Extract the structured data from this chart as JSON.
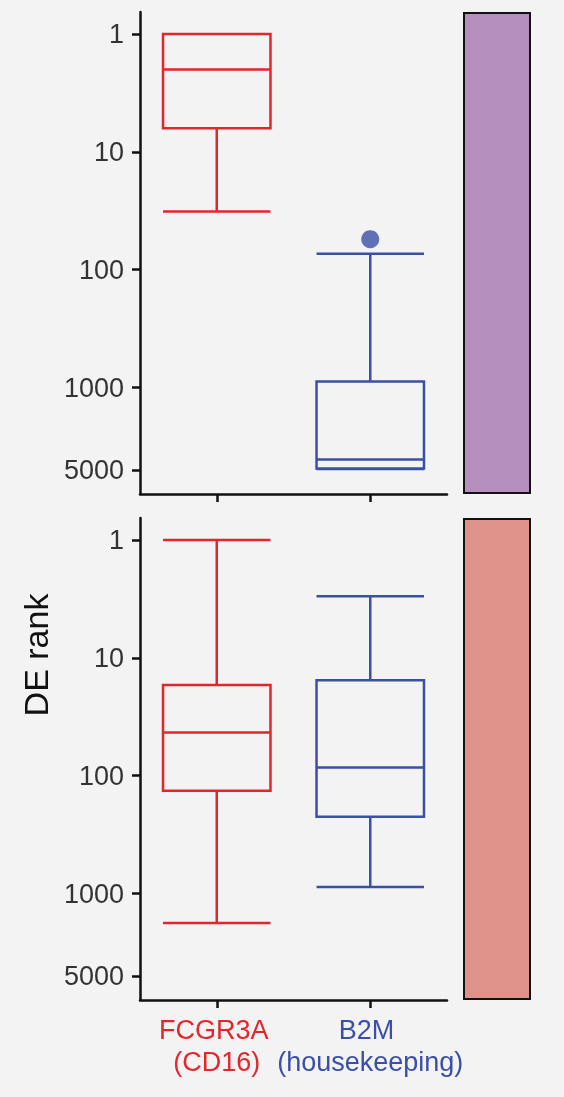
{
  "chart_data": [
    {
      "type": "box",
      "categories": [
        "FCGR3A (CD16)",
        "B2M (housekeeping)"
      ],
      "colors": [
        "#e3262b",
        "#3a4fa8"
      ],
      "log": true,
      "ylim": [
        8000,
        0.65
      ],
      "yticks": [
        1,
        10,
        100,
        1000,
        5000
      ],
      "tick_labels": "y",
      "grid": false,
      "boxes": [
        {
          "low": 1,
          "q1": 1,
          "median": 2,
          "q3": 6.3,
          "high": 32
        },
        {
          "low": 73,
          "q1": 890,
          "median": 4070,
          "q3": 4860,
          "high": 4900,
          "outliers": [
            55
          ]
        }
      ]
    },
    {
      "type": "box",
      "categories": [
        "FCGR3A (CD16)",
        "B2M (housekeeping)"
      ],
      "colors": [
        "#e3262b",
        "#3a4fa8"
      ],
      "log": true,
      "ylim": [
        8000,
        0.65
      ],
      "yticks": [
        1,
        10,
        100,
        1000,
        5000
      ],
      "ylabel": "DE rank",
      "grid": false,
      "boxes": [
        {
          "low": 1,
          "q1": 17,
          "median": 43,
          "q3": 134,
          "high": 1780
        },
        {
          "low": 3,
          "q1": 15.5,
          "median": 85,
          "q3": 223,
          "high": 880
        }
      ]
    }
  ]
}
